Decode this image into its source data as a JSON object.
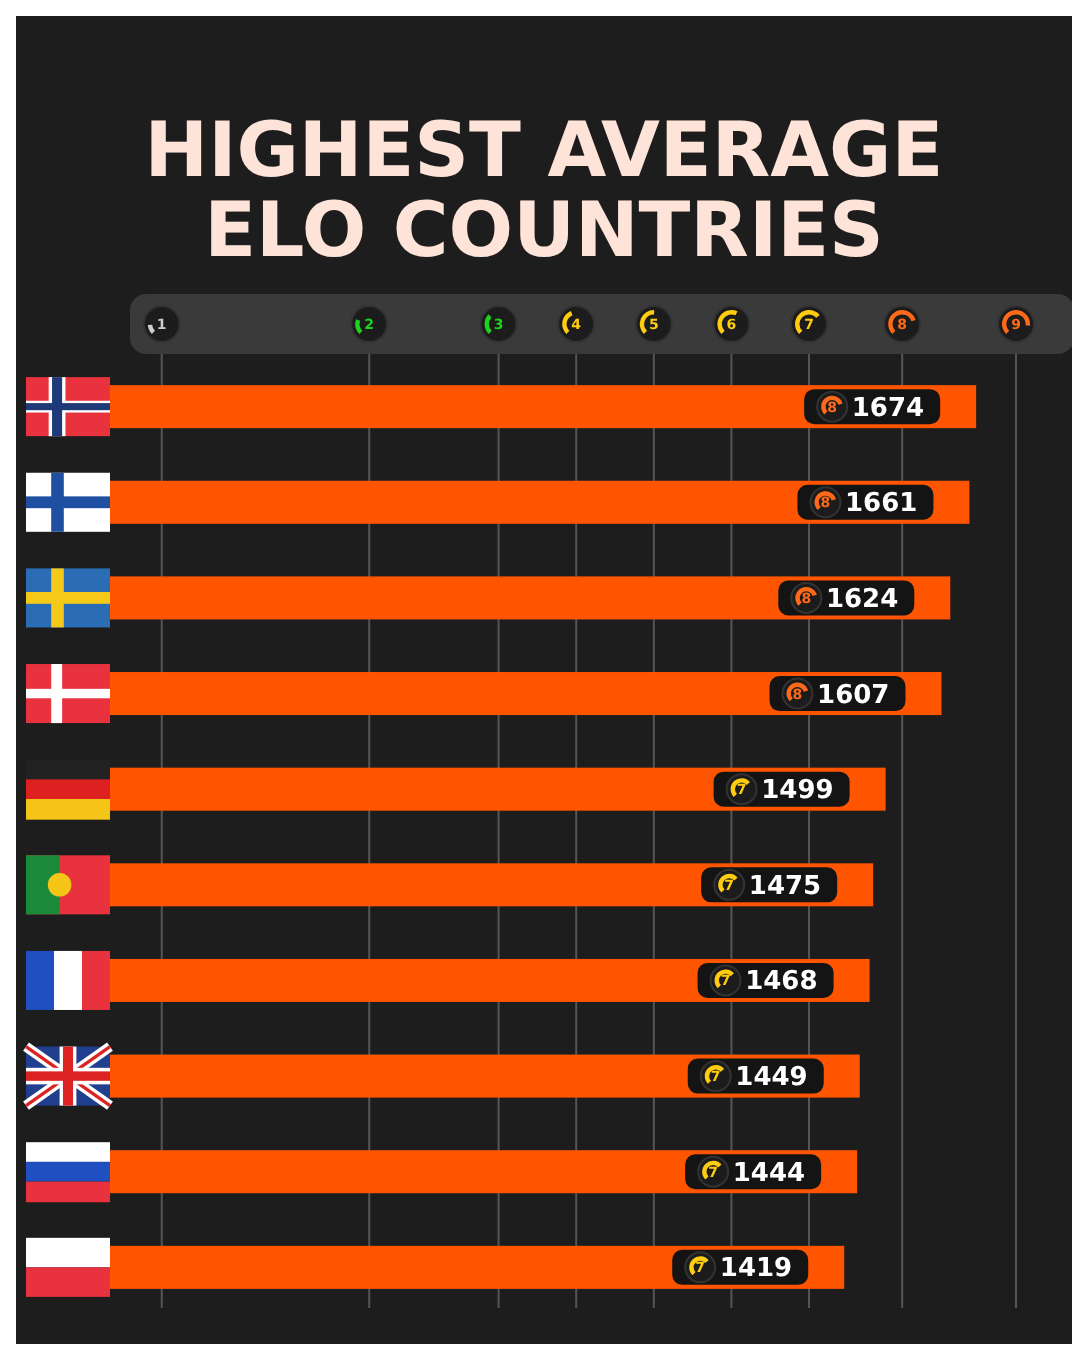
{
  "chart_data": {
    "type": "bar",
    "orientation": "horizontal",
    "title": "HIGHEST AVERAGE ELO COUNTRIES",
    "categories": [
      null,
      null,
      null,
      null,
      null,
      null,
      null,
      null,
      null,
      null
    ],
    "values": [
      1674,
      1661,
      1624,
      1607,
      1499,
      1475,
      1468,
      1449,
      1444,
      1419
    ],
    "color": "#ff5500",
    "ref_lines": [
      {
        "axis": "x",
        "value": 100
      },
      {
        "axis": "x",
        "value": 501
      },
      {
        "axis": "x",
        "value": 751
      },
      {
        "axis": "x",
        "value": 901
      },
      {
        "axis": "x",
        "value": 1051
      },
      {
        "axis": "x",
        "value": 1201
      },
      {
        "axis": "x",
        "value": 1351
      },
      {
        "axis": "x",
        "value": 1531
      },
      {
        "axis": "x",
        "value": 1751
      }
    ],
    "annotations": [
      "1",
      "2",
      "3",
      "4",
      "5",
      "6",
      "7",
      "8",
      "9"
    ],
    "data_labels": true
  }
}
